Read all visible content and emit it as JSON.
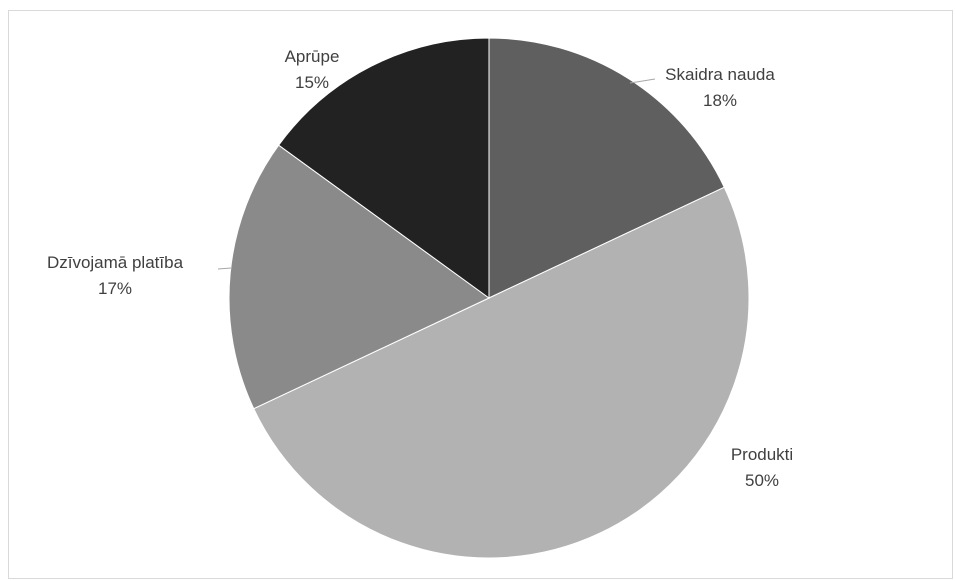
{
  "chart_data": {
    "type": "pie",
    "title": "",
    "legend": "none",
    "slices": [
      {
        "label": "Skaidra nauda",
        "value": 18,
        "value_label": "18%",
        "color": "#5f5f5f"
      },
      {
        "label": "Produkti",
        "value": 50,
        "value_label": "50%",
        "color": "#b2b2b2"
      },
      {
        "label": "Dzīvojamā platība",
        "value": 17,
        "value_label": "17%",
        "color": "#8a8a8a"
      },
      {
        "label": "Aprūpe",
        "value": 15,
        "value_label": "15%",
        "color": "#222222"
      }
    ]
  }
}
